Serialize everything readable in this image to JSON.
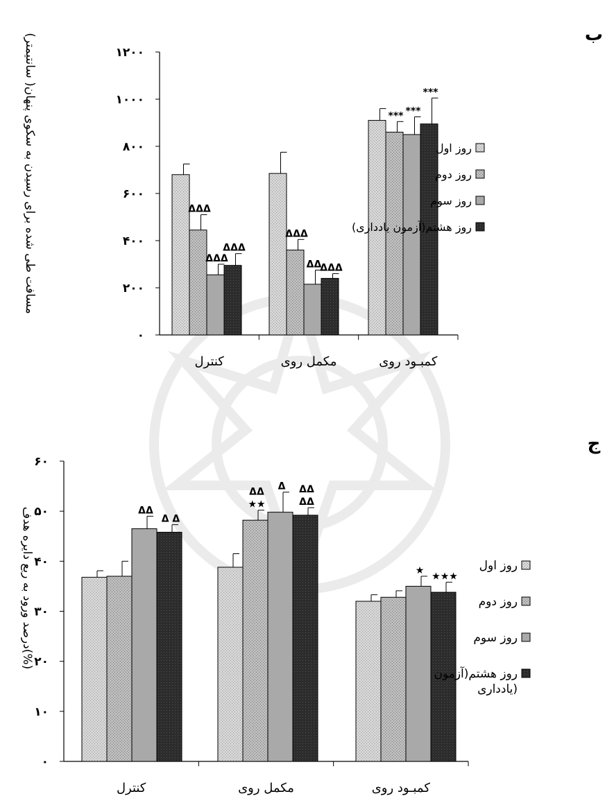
{
  "chart_data": [
    {
      "panel": "ب",
      "type": "bar",
      "ylabel": "مسافت طی شده برای رسیدن به سکوی پنهان( سانتیمتر)",
      "yticks": [
        "۱۲۰۰",
        "۱۰۰۰",
        "۸۰۰",
        "۶۰۰",
        "۴۰۰",
        "۲۰۰",
        "۰"
      ],
      "ylim": [
        0,
        1200
      ],
      "categories": [
        "کنترل",
        "مکمل روی",
        "کمبـود روی"
      ],
      "legend_position": "right",
      "series": [
        {
          "name": "روز اول",
          "values": [
            680,
            685,
            910
          ],
          "errors": [
            45,
            90,
            50
          ],
          "marks": [
            "",
            "",
            ""
          ]
        },
        {
          "name": "روز دوم",
          "values": [
            445,
            360,
            860
          ],
          "errors": [
            65,
            45,
            45
          ],
          "marks": [
            "ΔΔΔ",
            "ΔΔΔ",
            "***"
          ]
        },
        {
          "name": "روز سوم",
          "values": [
            255,
            215,
            850
          ],
          "errors": [
            45,
            60,
            75
          ],
          "marks": [
            "ΔΔΔ",
            "ΔΔ",
            "***"
          ]
        },
        {
          "name": "روز هشتم(آزمون یادداری)",
          "values": [
            295,
            240,
            895
          ],
          "errors": [
            50,
            20,
            110
          ],
          "marks": [
            "ΔΔΔ",
            "ΔΔΔ",
            "***"
          ]
        }
      ]
    },
    {
      "panel": "ج",
      "type": "bar",
      "ylabel": "درصد ورود به ربع دایره هدف(%)",
      "yticks": [
        "۶۰",
        "۵۰",
        "۴۰",
        "۳۰",
        "۲۰",
        "۱۰",
        "۰"
      ],
      "ylim": [
        0,
        60
      ],
      "categories": [
        "کنترل",
        "مکمل روی",
        "کمبـود روی"
      ],
      "legend_position": "right",
      "series": [
        {
          "name": "روز اول",
          "values": [
            36.8,
            38.8,
            32
          ],
          "errors": [
            1.3,
            2.7,
            1.3
          ],
          "marks": [
            "",
            "",
            ""
          ]
        },
        {
          "name": "روز دوم",
          "values": [
            37,
            48.2,
            32.8
          ],
          "errors": [
            3,
            2,
            1.3
          ],
          "marks": [
            "",
            "★★",
            ""
          ]
        },
        {
          "name": "روز سوم",
          "values": [
            46.5,
            49.8,
            35
          ],
          "errors": [
            2.5,
            4,
            2
          ],
          "marks": [
            "ΔΔ",
            "Δ",
            "★"
          ]
        },
        {
          "name": "روز هشتم(آزمون یادداری)",
          "values": [
            45.8,
            49.2,
            33.8
          ],
          "errors": [
            1.5,
            1.5,
            2
          ],
          "marks": [
            "Δ Δ",
            "ΔΔ",
            "★★★"
          ]
        }
      ],
      "mark_above_top_error": [
        "",
        "ΔΔ",
        "",
        "ΔΔ"
      ]
    }
  ],
  "legend_b": [
    "روز اول",
    "روز دوم",
    "روز سوم",
    "روز هشتم(آزمون یادداری)"
  ],
  "legend_c": [
    "روز اول",
    "روز دوم",
    "روز سوم",
    "روز هشتم(آزمون",
    "یادداری)"
  ],
  "colors": {
    "day1": "#d4d4d4",
    "day2": "#b8b8b8",
    "day3": "#a6a6a6",
    "day8": "#2a2a2a",
    "axis": "#000000"
  }
}
